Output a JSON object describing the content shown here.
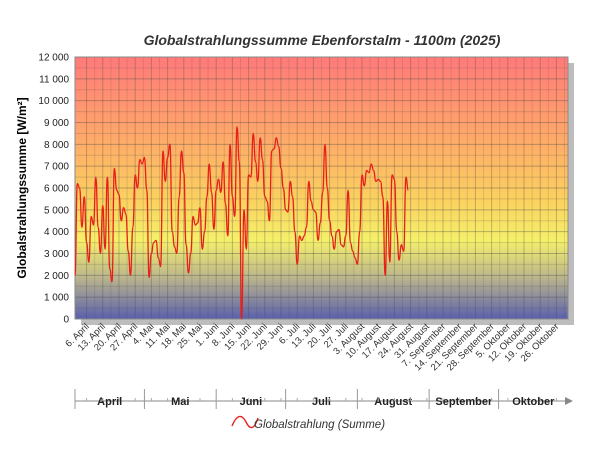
{
  "chart_data": {
    "type": "line",
    "title": "Globalstrahlungssumme Ebenforstalm - 1100m (2025)",
    "ylabel": "Globalstrahlungssumme [W/m²]",
    "ylim": [
      0,
      12000
    ],
    "yticks": [
      "0",
      "1 000",
      "2 000",
      "3 000",
      "4 000",
      "5 000",
      "6 000",
      "7 000",
      "8 000",
      "9 000",
      "10 000",
      "11 000",
      "12 000"
    ],
    "xticks": [
      "6. April",
      "13. April",
      "20. April",
      "27. April",
      "4. Mai",
      "11. Mai",
      "18. Mai",
      "25. Mai",
      "1. Juni",
      "8. Juni",
      "15. Juni",
      "22. Juni",
      "29. Juni",
      "6. Juli",
      "13. Juli",
      "20. Juli",
      "27. Juli",
      "3. August",
      "10. August",
      "17. August",
      "24. August",
      "31. August",
      "7. September",
      "14. September",
      "21. September",
      "28. September",
      "5. Oktober",
      "12. Oktober",
      "19. Oktober",
      "26. Oktober"
    ],
    "months": [
      "April",
      "Mai",
      "Juni",
      "Juli",
      "August",
      "September",
      "Oktober"
    ],
    "series": [
      {
        "name": "Globalstrahlung (Summe)",
        "color": "#e8201a",
        "x_start": "2025-04-01",
        "values": [
          2000,
          6200,
          6000,
          4200,
          5600,
          3500,
          2600,
          4700,
          4300,
          6500,
          4200,
          3000,
          5200,
          3200,
          6500,
          2300,
          1700,
          6900,
          5900,
          5700,
          4500,
          5100,
          4800,
          3100,
          2000,
          4200,
          6600,
          6000,
          7300,
          7100,
          7400,
          5900,
          1900,
          3000,
          3500,
          3600,
          2800,
          2400,
          7700,
          6300,
          7400,
          8000,
          4000,
          3300,
          3000,
          5600,
          7700,
          6700,
          3400,
          2100,
          3000,
          4700,
          4300,
          4400,
          5100,
          3200,
          4000,
          5600,
          7100,
          5800,
          4100,
          5900,
          6400,
          5800,
          7200,
          5300,
          3800,
          8000,
          5600,
          4700,
          8800,
          7200,
          0,
          5000,
          3200,
          6600,
          6500,
          8500,
          7200,
          6300,
          8300,
          7300,
          5600,
          5400,
          4500,
          7700,
          7800,
          8300,
          7900,
          6900,
          6000,
          5000,
          4900,
          6300,
          5600,
          4000,
          2500,
          3800,
          3600,
          3800,
          4200,
          6300,
          5400,
          5000,
          4900,
          3600,
          4400,
          5800,
          8000,
          6000,
          4500,
          3800,
          3200,
          4000,
          4100,
          3400,
          3300,
          3800,
          5900,
          3500,
          3100,
          2800,
          2500,
          4000,
          6600,
          6100,
          6800,
          6700,
          7100,
          6800,
          6300,
          6400,
          6300,
          5600,
          2000,
          5400,
          2600,
          6600,
          6400,
          4000,
          2700,
          3400,
          3100,
          6500,
          5900
        ]
      }
    ]
  }
}
